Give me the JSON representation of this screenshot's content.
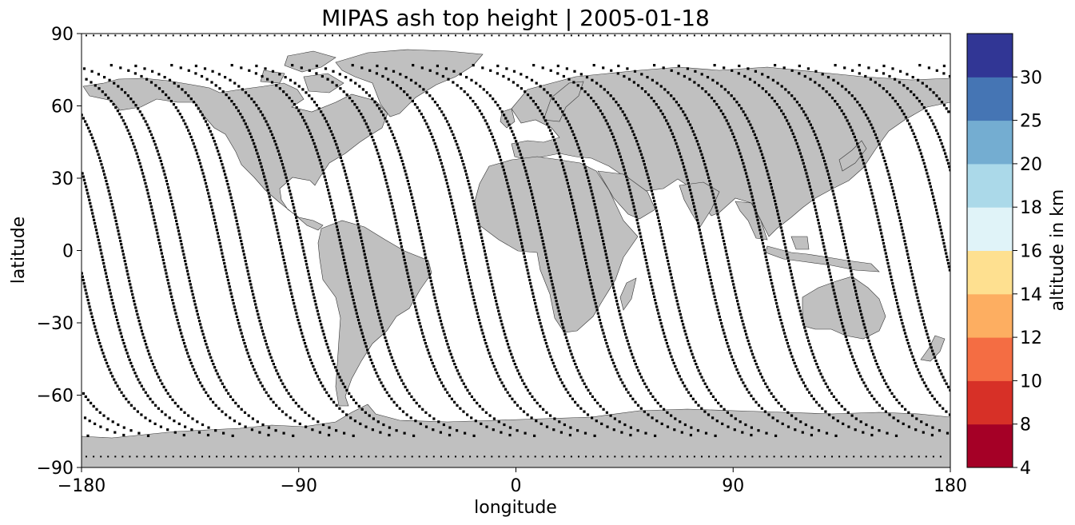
{
  "title": "MIPAS ash top height | 2005-01-18",
  "map": {
    "projection": "PlateCarree",
    "land_color": "#c0c0c0",
    "coastline_color": "#333333",
    "marker_color": "#000000",
    "xlabel": "longitude",
    "ylabel": "latitude",
    "xlim": [
      -180,
      180
    ],
    "ylim": [
      -90,
      90
    ],
    "xticks": [
      -180,
      -90,
      0,
      90,
      180
    ],
    "xtick_labels": [
      "−180",
      "−90",
      "0",
      "90",
      "180"
    ],
    "yticks": [
      -90,
      -60,
      -30,
      0,
      30,
      60,
      90
    ],
    "ytick_labels": [
      "−90",
      "−60",
      "−30",
      "0",
      "30",
      "60",
      "90"
    ],
    "grid": false
  },
  "colorbar": {
    "label": "altitude in km",
    "boundaries": [
      4,
      8,
      10,
      12,
      14,
      16,
      18,
      20,
      25,
      30
    ],
    "tick_labels": [
      "4",
      "8",
      "10",
      "12",
      "14",
      "16",
      "18",
      "20",
      "25",
      "30"
    ],
    "colors": [
      "#a50026",
      "#d73027",
      "#f46d43",
      "#fdae61",
      "#fee090",
      "#e0f3f8",
      "#abd9e9",
      "#74add1",
      "#4575b4",
      "#313695"
    ]
  },
  "orbit_tracks": {
    "descending_equator_crossing_lon": [
      -172,
      -147,
      -122,
      -97,
      -72,
      -47,
      -22,
      3,
      28,
      53,
      78,
      103,
      128,
      153,
      178
    ],
    "ascending_equator_crossing_lon": [
      -163,
      -138,
      -113,
      -88,
      -63,
      -38,
      -13,
      12,
      37,
      62,
      87,
      112,
      137,
      162
    ],
    "max_latitude": 87
  }
}
